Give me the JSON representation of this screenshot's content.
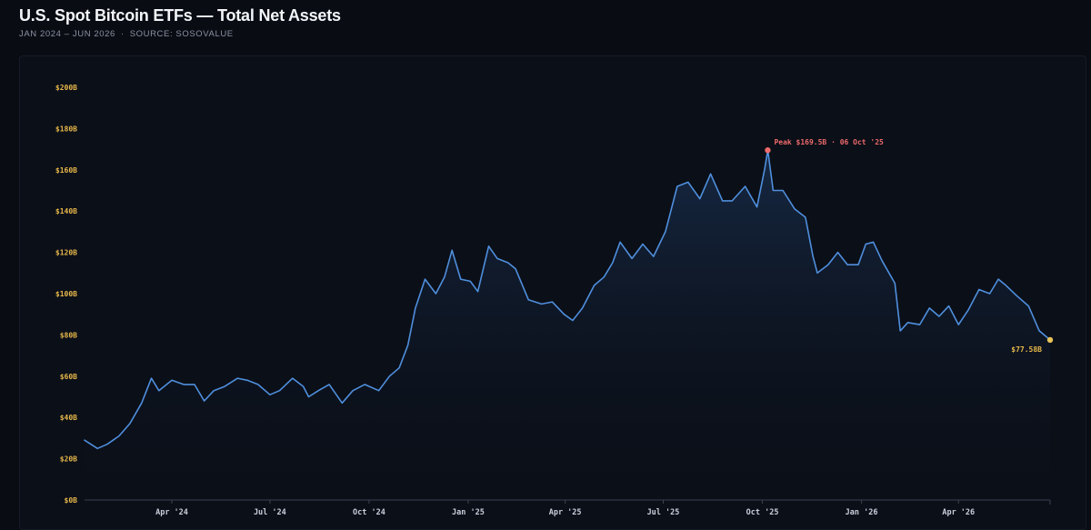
{
  "header": {
    "title": "U.S. Spot Bitcoin ETFs — Total Net Assets",
    "period": "JAN 2024 – JUN 2026",
    "separator": "·",
    "source": "SOURCE: SOSOVALUE"
  },
  "colors": {
    "line": "#4f8fdd",
    "peak_marker": "#ee6b6b",
    "last_marker": "#e8c45a",
    "y_tick": "#e8b84a"
  },
  "chart_data": {
    "type": "area",
    "title": "U.S. Spot Bitcoin ETFs — Total Net Assets",
    "xlabel": "",
    "ylabel": "",
    "unit": "$B",
    "ylim": [
      0,
      200
    ],
    "xlim": [
      "2024-01-11",
      "2026-06-25"
    ],
    "grid": false,
    "legend": "none",
    "y_ticks": [
      "$0B",
      "$20B",
      "$40B",
      "$60B",
      "$80B",
      "$100B",
      "$120B",
      "$140B",
      "$160B",
      "$180B",
      "$200B"
    ],
    "x_ticks": [
      {
        "date": "2024-04-01",
        "label": "Apr '24"
      },
      {
        "date": "2024-07-01",
        "label": "Jul '24"
      },
      {
        "date": "2024-10-01",
        "label": "Oct '24"
      },
      {
        "date": "2025-01-01",
        "label": "Jan '25"
      },
      {
        "date": "2025-04-01",
        "label": "Apr '25"
      },
      {
        "date": "2025-07-01",
        "label": "Jul '25"
      },
      {
        "date": "2025-10-01",
        "label": "Oct '25"
      },
      {
        "date": "2026-01-01",
        "label": "Jan '26"
      },
      {
        "date": "2026-04-01",
        "label": "Apr '26"
      }
    ],
    "series": [
      {
        "points": [
          [
            "2024-01-11",
            29
          ],
          [
            "2024-01-23",
            25
          ],
          [
            "2024-02-01",
            27
          ],
          [
            "2024-02-12",
            31
          ],
          [
            "2024-02-22",
            37
          ],
          [
            "2024-03-04",
            47
          ],
          [
            "2024-03-13",
            59
          ],
          [
            "2024-03-20",
            53
          ],
          [
            "2024-04-01",
            58
          ],
          [
            "2024-04-12",
            56
          ],
          [
            "2024-04-22",
            56
          ],
          [
            "2024-05-01",
            48
          ],
          [
            "2024-05-10",
            53
          ],
          [
            "2024-05-20",
            55
          ],
          [
            "2024-06-01",
            59
          ],
          [
            "2024-06-10",
            58
          ],
          [
            "2024-06-20",
            56
          ],
          [
            "2024-07-01",
            51
          ],
          [
            "2024-07-10",
            53
          ],
          [
            "2024-07-22",
            59
          ],
          [
            "2024-08-01",
            55
          ],
          [
            "2024-08-06",
            50
          ],
          [
            "2024-08-15",
            53
          ],
          [
            "2024-08-25",
            56
          ],
          [
            "2024-09-06",
            47
          ],
          [
            "2024-09-16",
            53
          ],
          [
            "2024-09-27",
            56
          ],
          [
            "2024-10-10",
            53
          ],
          [
            "2024-10-20",
            60
          ],
          [
            "2024-10-29",
            64
          ],
          [
            "2024-11-06",
            75
          ],
          [
            "2024-11-13",
            93
          ],
          [
            "2024-11-22",
            107
          ],
          [
            "2024-12-02",
            100
          ],
          [
            "2024-12-10",
            108
          ],
          [
            "2024-12-17",
            121
          ],
          [
            "2024-12-25",
            107
          ],
          [
            "2025-01-03",
            106
          ],
          [
            "2025-01-10",
            101
          ],
          [
            "2025-01-20",
            123
          ],
          [
            "2025-01-28",
            117
          ],
          [
            "2025-02-07",
            115
          ],
          [
            "2025-02-14",
            112
          ],
          [
            "2025-02-26",
            97
          ],
          [
            "2025-03-10",
            95
          ],
          [
            "2025-03-20",
            96
          ],
          [
            "2025-03-31",
            90
          ],
          [
            "2025-04-08",
            87
          ],
          [
            "2025-04-17",
            93
          ],
          [
            "2025-04-28",
            104
          ],
          [
            "2025-05-07",
            108
          ],
          [
            "2025-05-15",
            115
          ],
          [
            "2025-05-22",
            125
          ],
          [
            "2025-06-02",
            117
          ],
          [
            "2025-06-12",
            124
          ],
          [
            "2025-06-22",
            118
          ],
          [
            "2025-07-03",
            130
          ],
          [
            "2025-07-14",
            152
          ],
          [
            "2025-07-24",
            154
          ],
          [
            "2025-08-04",
            146
          ],
          [
            "2025-08-14",
            158
          ],
          [
            "2025-08-25",
            145
          ],
          [
            "2025-09-03",
            145
          ],
          [
            "2025-09-15",
            152
          ],
          [
            "2025-09-26",
            142
          ],
          [
            "2025-10-03",
            160
          ],
          [
            "2025-10-06",
            169.5
          ],
          [
            "2025-10-11",
            150
          ],
          [
            "2025-10-20",
            150
          ],
          [
            "2025-10-31",
            141
          ],
          [
            "2025-11-10",
            137
          ],
          [
            "2025-11-17",
            118
          ],
          [
            "2025-11-21",
            110
          ],
          [
            "2025-12-01",
            114
          ],
          [
            "2025-12-10",
            120
          ],
          [
            "2025-12-19",
            114
          ],
          [
            "2025-12-29",
            114
          ],
          [
            "2026-01-05",
            124
          ],
          [
            "2026-01-12",
            125
          ],
          [
            "2026-01-20",
            116
          ],
          [
            "2026-02-01",
            105
          ],
          [
            "2026-02-06",
            82
          ],
          [
            "2026-02-13",
            86
          ],
          [
            "2026-02-24",
            85
          ],
          [
            "2026-03-05",
            93
          ],
          [
            "2026-03-14",
            89
          ],
          [
            "2026-03-23",
            94
          ],
          [
            "2026-04-01",
            85
          ],
          [
            "2026-04-10",
            92
          ],
          [
            "2026-04-20",
            102
          ],
          [
            "2026-04-30",
            100
          ],
          [
            "2026-05-08",
            107
          ],
          [
            "2026-05-15",
            104
          ],
          [
            "2026-05-25",
            99
          ],
          [
            "2026-06-05",
            94
          ],
          [
            "2026-06-15",
            82
          ],
          [
            "2026-06-25",
            77.58
          ]
        ]
      }
    ],
    "annotations": [
      {
        "type": "peak",
        "date": "2025-10-06",
        "value": 169.5,
        "label": "Peak $169.5B · 06 Oct '25"
      },
      {
        "type": "last",
        "date": "2026-06-25",
        "value": 77.58,
        "label": "$77.58B"
      }
    ]
  }
}
